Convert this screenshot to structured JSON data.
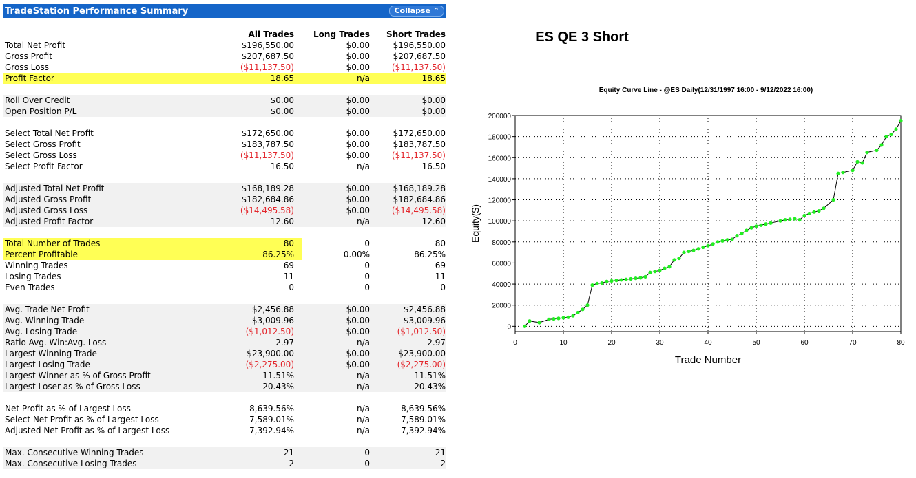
{
  "panel": {
    "title": "TradeStation Performance Summary",
    "collapse_label": "Collapse ⌃",
    "columns": [
      "All Trades",
      "Long Trades",
      "Short Trades"
    ],
    "rows": [
      {
        "label": "Total Net Profit",
        "all": "$196,550.00",
        "long": "$0.00",
        "short": "$196,550.00"
      },
      {
        "label": "Gross Profit",
        "all": "$207,687.50",
        "long": "$0.00",
        "short": "$207,687.50"
      },
      {
        "label": "Gross Loss",
        "all": "($11,137.50)",
        "long": "$0.00",
        "short": "($11,137.50)"
      },
      {
        "label": "Profit Factor",
        "all": "18.65",
        "long": "n/a",
        "short": "18.65"
      },
      {
        "label": "Roll Over Credit",
        "all": "$0.00",
        "long": "$0.00",
        "short": "$0.00"
      },
      {
        "label": "Open Position P/L",
        "all": "$0.00",
        "long": "$0.00",
        "short": "$0.00"
      },
      {
        "label": "Select Total Net Profit",
        "all": "$172,650.00",
        "long": "$0.00",
        "short": "$172,650.00"
      },
      {
        "label": "Select Gross Profit",
        "all": "$183,787.50",
        "long": "$0.00",
        "short": "$183,787.50"
      },
      {
        "label": "Select Gross Loss",
        "all": "($11,137.50)",
        "long": "$0.00",
        "short": "($11,137.50)"
      },
      {
        "label": "Select Profit Factor",
        "all": "16.50",
        "long": "n/a",
        "short": "16.50"
      },
      {
        "label": "Adjusted Total Net Profit",
        "all": "$168,189.28",
        "long": "$0.00",
        "short": "$168,189.28"
      },
      {
        "label": "Adjusted Gross Profit",
        "all": "$182,684.86",
        "long": "$0.00",
        "short": "$182,684.86"
      },
      {
        "label": "Adjusted Gross Loss",
        "all": "($14,495.58)",
        "long": "$0.00",
        "short": "($14,495.58)"
      },
      {
        "label": "Adjusted Profit Factor",
        "all": "12.60",
        "long": "n/a",
        "short": "12.60"
      },
      {
        "label": "Total Number of Trades",
        "all": "80",
        "long": "0",
        "short": "80"
      },
      {
        "label": "Percent Profitable",
        "all": "86.25%",
        "long": "0.00%",
        "short": "86.25%"
      },
      {
        "label": "Winning Trades",
        "all": "69",
        "long": "0",
        "short": "69"
      },
      {
        "label": "Losing Trades",
        "all": "11",
        "long": "0",
        "short": "11"
      },
      {
        "label": "Even Trades",
        "all": "0",
        "long": "0",
        "short": "0"
      },
      {
        "label": "Avg. Trade Net Profit",
        "all": "$2,456.88",
        "long": "$0.00",
        "short": "$2,456.88"
      },
      {
        "label": "Avg. Winning Trade",
        "all": "$3,009.96",
        "long": "$0.00",
        "short": "$3,009.96"
      },
      {
        "label": "Avg. Losing Trade",
        "all": "($1,012.50)",
        "long": "$0.00",
        "short": "($1,012.50)"
      },
      {
        "label": "Ratio Avg. Win:Avg. Loss",
        "all": "2.97",
        "long": "n/a",
        "short": "2.97"
      },
      {
        "label": "Largest Winning Trade",
        "all": "$23,900.00",
        "long": "$0.00",
        "short": "$23,900.00"
      },
      {
        "label": "Largest Losing Trade",
        "all": "($2,275.00)",
        "long": "$0.00",
        "short": "($2,275.00)"
      },
      {
        "label": "Largest Winner as % of Gross Profit",
        "all": "11.51%",
        "long": "n/a",
        "short": "11.51%"
      },
      {
        "label": "Largest Loser as % of Gross Loss",
        "all": "20.43%",
        "long": "n/a",
        "short": "20.43%"
      },
      {
        "label": "Net Profit as % of Largest Loss",
        "all": "8,639.56%",
        "long": "n/a",
        "short": "8,639.56%"
      },
      {
        "label": "Select Net Profit as % of Largest Loss",
        "all": "7,589.01%",
        "long": "n/a",
        "short": "7,589.01%"
      },
      {
        "label": "Adjusted Net Profit as % of Largest Loss",
        "all": "7,392.94%",
        "long": "n/a",
        "short": "7,392.94%"
      },
      {
        "label": "Max. Consecutive Winning Trades",
        "all": "21",
        "long": "0",
        "short": "21"
      },
      {
        "label": "Max. Consecutive Losing Trades",
        "all": "2",
        "long": "0",
        "short": "2"
      }
    ]
  },
  "chart_data": {
    "type": "line",
    "heading": "ES QE 3 Short",
    "title": "Equity Curve Line - @ES Daily(12/31/1997 16:00 - 9/12/2022 16:00)",
    "xlabel": "Trade Number",
    "ylabel": "Equity($)",
    "xlim": [
      0,
      80
    ],
    "ylim": [
      -5000,
      200000
    ],
    "xticks": [
      0,
      10,
      20,
      30,
      40,
      50,
      60,
      70,
      80
    ],
    "yticks": [
      0,
      20000,
      40000,
      60000,
      80000,
      100000,
      120000,
      140000,
      160000,
      180000,
      200000
    ],
    "grid": true,
    "line_color": "#000000",
    "marker_color": "#22ee22",
    "series": [
      {
        "x": [
          2,
          3,
          5,
          7,
          8,
          9,
          10,
          11,
          12,
          13,
          14,
          15,
          16,
          17,
          18,
          19,
          20,
          21,
          22,
          23,
          24,
          25,
          26,
          27,
          28,
          29,
          30,
          31,
          32,
          33,
          34,
          35,
          36,
          37,
          38,
          39,
          40,
          41,
          42,
          43,
          44,
          45,
          46,
          47,
          48,
          49,
          50,
          51,
          52,
          53,
          55,
          56,
          57,
          58,
          59,
          60,
          61,
          62,
          63,
          64,
          66,
          67,
          68,
          70,
          71,
          72,
          73,
          75,
          76,
          77,
          78,
          79,
          80
        ],
        "y": [
          0,
          5000,
          3500,
          6500,
          7000,
          7500,
          8000,
          8500,
          10000,
          13000,
          16000,
          20000,
          39000,
          40500,
          41000,
          42500,
          43000,
          43500,
          44000,
          44500,
          45000,
          45500,
          46000,
          47000,
          51000,
          52000,
          53000,
          55000,
          56500,
          63000,
          64500,
          70000,
          71000,
          72000,
          73500,
          75000,
          76500,
          78000,
          80000,
          81000,
          82000,
          82500,
          86000,
          88000,
          91000,
          93500,
          95000,
          96000,
          97000,
          98000,
          100000,
          101000,
          101500,
          102000,
          101000,
          105000,
          107000,
          108500,
          109500,
          112000,
          120000,
          145000,
          146000,
          148000,
          156000,
          155000,
          165000,
          167000,
          172000,
          180000,
          182000,
          187000,
          195000
        ]
      }
    ]
  }
}
